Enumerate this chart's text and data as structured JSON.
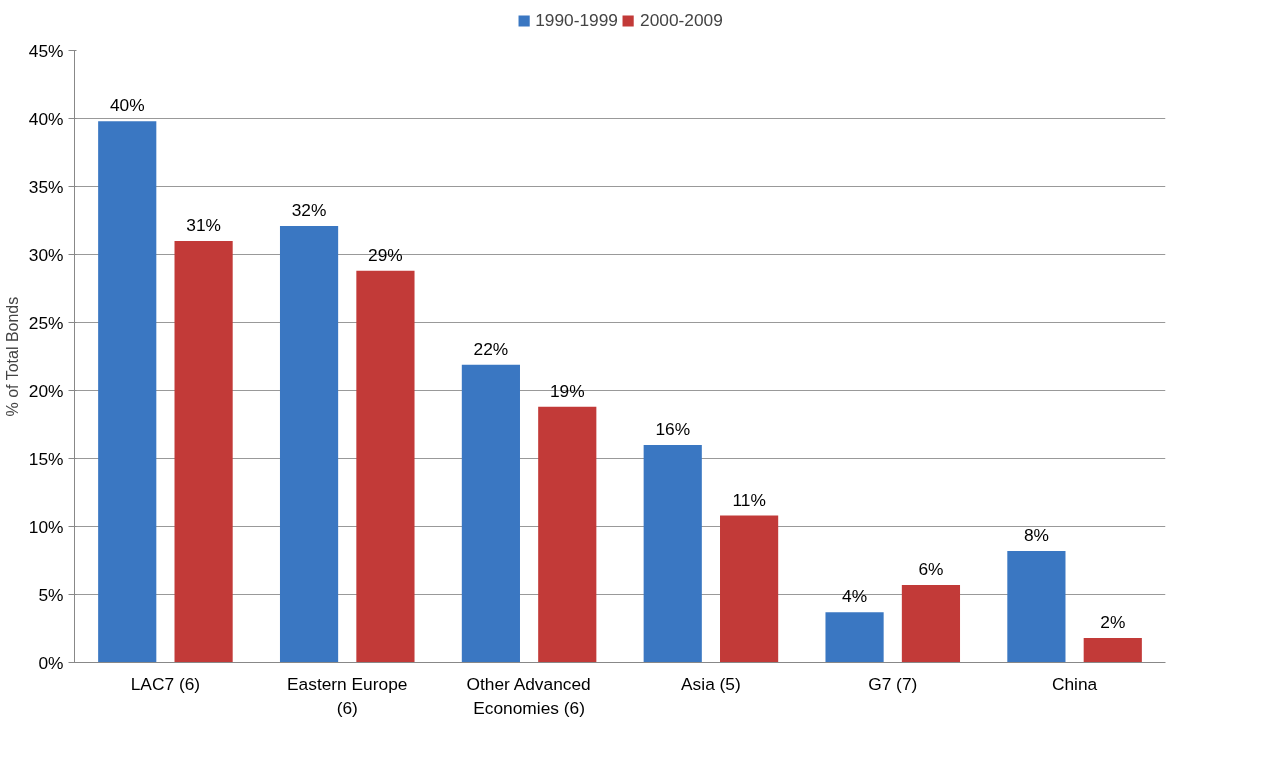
{
  "chart_data": {
    "type": "bar",
    "ylabel": "% of Total Bonds",
    "categories": [
      "LAC7 (6)",
      "Eastern Europe (6)",
      "Other Advanced Economies (6)",
      "Asia (5)",
      "G7 (7)",
      "China"
    ],
    "series": [
      {
        "name": "1990-1999",
        "color": "#3a77c2",
        "values": [
          39.8,
          32.1,
          21.9,
          16.0,
          3.7,
          8.2
        ],
        "value_labels": [
          "40%",
          "32%",
          "22%",
          "16%",
          "4%",
          "8%"
        ]
      },
      {
        "name": "2000-2009",
        "color": "#c23a38",
        "values": [
          31.0,
          28.8,
          18.8,
          10.8,
          5.7,
          1.8
        ],
        "value_labels": [
          "31%",
          "29%",
          "19%",
          "11%",
          "6%",
          "2%"
        ]
      }
    ],
    "ylim": [
      0,
      45
    ],
    "yticks": [
      {
        "value": 0,
        "label": "0%"
      },
      {
        "value": 5,
        "label": "5%"
      },
      {
        "value": 10,
        "label": "10%"
      },
      {
        "value": 15,
        "label": "15%"
      },
      {
        "value": 20,
        "label": "20%"
      },
      {
        "value": 25,
        "label": "25%"
      },
      {
        "value": 30,
        "label": "30%"
      },
      {
        "value": 35,
        "label": "35%"
      },
      {
        "value": 40,
        "label": "40%"
      },
      {
        "value": 45,
        "label": "45%"
      }
    ],
    "grid": "y",
    "legend": "top"
  }
}
